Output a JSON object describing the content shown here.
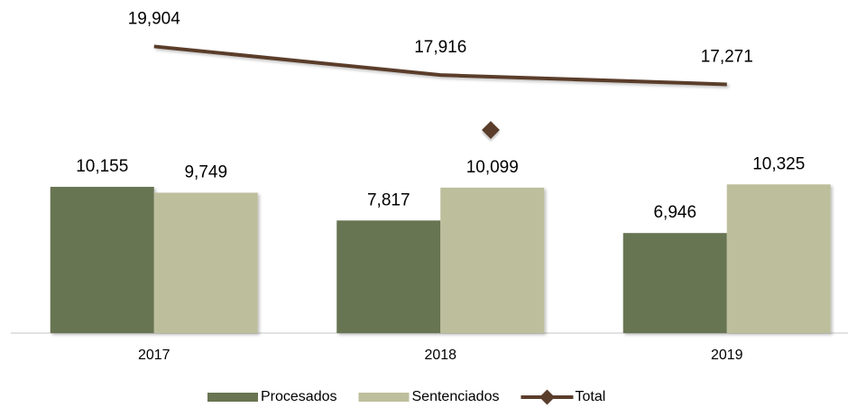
{
  "chart_data": {
    "type": "bar",
    "categories": [
      "2017",
      "2018",
      "2019"
    ],
    "series": [
      {
        "name": "Procesados",
        "type": "bar",
        "color": "#687452",
        "values": [
          10155,
          7817,
          6946
        ],
        "value_labels": [
          "10,155",
          "7,817",
          "6,946"
        ]
      },
      {
        "name": "Sentenciados",
        "type": "bar",
        "color": "#bdbf9c",
        "values": [
          9749,
          10099,
          10325
        ],
        "value_labels": [
          "9,749",
          "10,099",
          "10,325"
        ]
      },
      {
        "name": "Total",
        "type": "line",
        "color": "#5a3d2b",
        "values": [
          19904,
          17916,
          17271
        ],
        "value_labels": [
          "19,904",
          "17,916",
          "17,271"
        ]
      }
    ],
    "ylim": [
      0,
      22000
    ],
    "legend": "bottom"
  }
}
